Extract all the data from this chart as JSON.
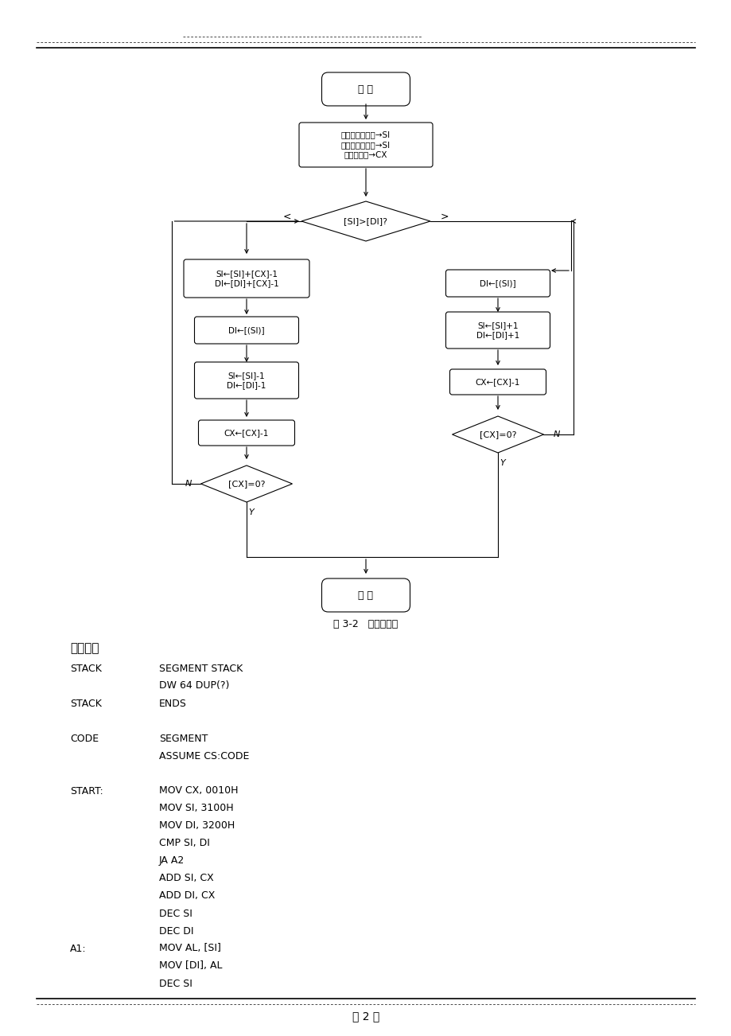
{
  "bg_color": "#ffffff",
  "page_width": 9.2,
  "page_height": 13.02,
  "caption": "图 3-2   程序流程图",
  "section_title": "实验程序",
  "start_text": "开 始",
  "end_text": "结 束",
  "init_text": "源数据块首地址→SI\n源数据块首地址→SI\n携移字节数→CX",
  "diamond1_text": "[SI]>[DI]?",
  "left_label": "<",
  "right_label": ">",
  "lb1_text": "SI←[SI]+[CX]-1\nDI←[DI]+[CX]-1",
  "lb2_text": "DI←[(SI)]",
  "lb3_text": "SI←[SI]-1\nDI←[DI]-1",
  "lb4_text": "CX←[CX]-1",
  "ld2_text": "[CX]=0?",
  "rb1_text": "DI←[(SI)]",
  "rb2_text": "SI←[SI]+1\nDI←[DI]+1",
  "rb3_text": "CX←[CX]-1",
  "rd2_text": "[CX]=0?",
  "N_label": "N",
  "Y_label": "Y",
  "footer_text": "第 2 页",
  "code_block": [
    [
      "STACK",
      "SEGMENT STACK"
    ],
    [
      "",
      "DW 64 DUP(?)"
    ],
    [
      "STACK",
      "ENDS"
    ],
    [
      "",
      ""
    ],
    [
      "CODE",
      "SEGMENT"
    ],
    [
      "",
      "ASSUME CS:CODE"
    ],
    [
      "",
      ""
    ],
    [
      "START:",
      "MOV CX, 0010H"
    ],
    [
      "",
      "MOV SI, 3100H"
    ],
    [
      "",
      "MOV DI, 3200H"
    ],
    [
      "",
      "CMP SI, DI"
    ],
    [
      "",
      "JA A2"
    ],
    [
      "",
      "ADD SI, CX"
    ],
    [
      "",
      "ADD DI, CX"
    ],
    [
      "",
      "DEC SI"
    ],
    [
      "",
      "DEC DI"
    ],
    [
      "A1:",
      "MOV AL, [SI]"
    ],
    [
      "",
      "MOV [DI], AL"
    ],
    [
      "",
      "DEC SI"
    ]
  ]
}
